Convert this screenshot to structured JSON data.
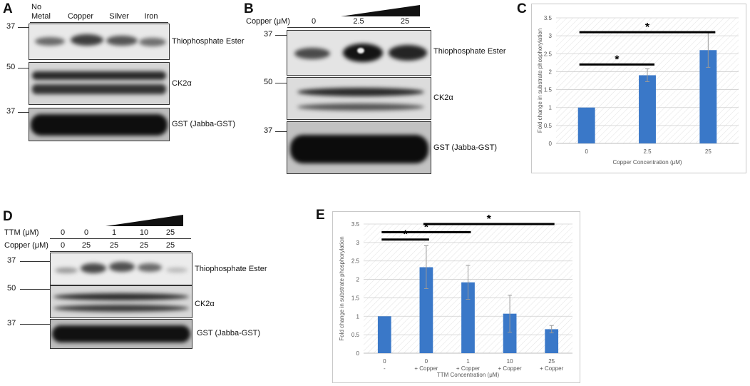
{
  "panelA": {
    "letter": "A",
    "lanes": [
      "No\nMetal",
      "Copper",
      "Silver",
      "Iron"
    ],
    "mw": [
      "37",
      "50",
      "37"
    ],
    "blots": [
      "Thiophosphate Ester",
      "CK2α",
      "GST (Jabba-GST)"
    ]
  },
  "panelB": {
    "letter": "B",
    "row_label": "Copper (μM)",
    "lanes": [
      "0",
      "2.5",
      "25"
    ],
    "mw": [
      "37",
      "50",
      "37"
    ],
    "blots": [
      "Thiophosphate Ester",
      "CK2α",
      "GST (Jabba-GST)"
    ]
  },
  "panelD": {
    "letter": "D",
    "ttm_label": "TTM (μM)",
    "copper_label": "Copper (μM)",
    "ttm_values": [
      "0",
      "0",
      "1",
      "10",
      "25"
    ],
    "copper_values": [
      "0",
      "25",
      "25",
      "25",
      "25"
    ],
    "mw": [
      "37",
      "50",
      "37"
    ],
    "blots": [
      "Thiophosphate Ester",
      "CK2α",
      "GST (Jabba-GST)"
    ]
  },
  "chart_data": [
    {
      "panel": "C",
      "type": "bar",
      "categories": [
        "0",
        "2.5",
        "25"
      ],
      "values": [
        1.0,
        1.9,
        2.6
      ],
      "errors": [
        0.0,
        0.18,
        0.48
      ],
      "xlabel": "Copper Concentration (μM)",
      "ylabel": "Fold change in substrate phosphorylation",
      "ylim": [
        0,
        3.5
      ],
      "yticks": [
        "0",
        "0.5",
        "1",
        "1.5",
        "2",
        "2.5",
        "3",
        "3.5"
      ],
      "significance": [
        {
          "from": 0,
          "to": 1,
          "level": 2.2,
          "label": "*"
        },
        {
          "from": 0,
          "to": 2,
          "level": 3.1,
          "label": "*"
        }
      ],
      "bar_color": "#3a78c8"
    },
    {
      "panel": "E",
      "type": "bar",
      "categories": [
        "0\n-",
        "0\n+ Copper",
        "1\n+ Copper",
        "10\n+ Copper",
        "25\n+ Copper"
      ],
      "values": [
        1.0,
        2.33,
        1.92,
        1.07,
        0.65
      ],
      "errors": [
        0.0,
        0.58,
        0.46,
        0.5,
        0.1
      ],
      "xlabel": "TTM Concentration (μM)",
      "ylabel": "Fold change in substrate phosphorylation",
      "ylim": [
        0,
        3.5
      ],
      "yticks": [
        "0",
        "0.5",
        "1",
        "1.5",
        "2",
        "2.5",
        "3",
        "3.5"
      ],
      "significance": [
        {
          "from": 0,
          "to": 1,
          "level": 3.08,
          "label": "*"
        },
        {
          "from": 0,
          "to": 2,
          "level": 3.28,
          "label": "*"
        },
        {
          "from": 1,
          "to": 4,
          "level": 3.5,
          "label": "*"
        }
      ],
      "bar_color": "#3a78c8"
    }
  ]
}
